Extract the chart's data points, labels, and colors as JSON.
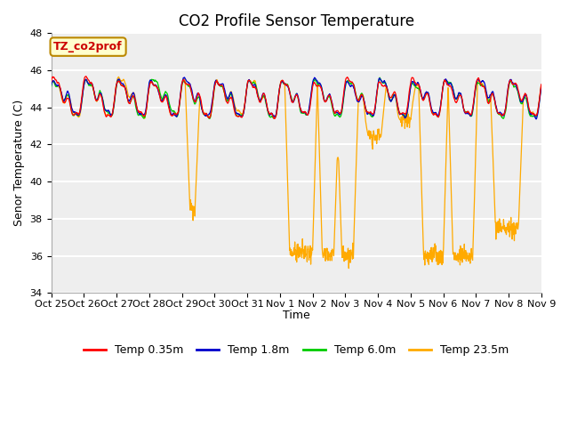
{
  "title": "CO2 Profile Sensor Temperature",
  "ylabel": "Senor Temperature (C)",
  "xlabel": "Time",
  "ylim": [
    34,
    48
  ],
  "yticks": [
    34,
    36,
    38,
    40,
    42,
    44,
    46,
    48
  ],
  "annotation_text": "TZ_co2prof",
  "annotation_color": "#cc0000",
  "annotation_bg": "#ffffcc",
  "annotation_border": "#bb8800",
  "colors": {
    "Temp 0.35m": "#ff0000",
    "Temp 1.8m": "#0000cc",
    "Temp 6.0m": "#00cc00",
    "Temp 23.5m": "#ffaa00"
  },
  "line_width": 0.9,
  "bg_color": "#ffffff",
  "plot_bg": "#eeeeee",
  "grid_color": "#ffffff",
  "tick_label_size": 8,
  "title_size": 12,
  "label_size": 9,
  "tick_labels": [
    "Oct 25",
    "Oct 26",
    "Oct 27",
    "Oct 28",
    "Oct 29",
    "Oct 30",
    "Oct 31",
    "Nov 1",
    "Nov 2",
    "Nov 3",
    "Nov 4",
    "Nov 5",
    "Nov 6",
    "Nov 7",
    "Nov 8",
    "Nov 9"
  ],
  "legend_labels": [
    "Temp 0.35m",
    "Temp 1.8m",
    "Temp 6.0m",
    "Temp 23.5m"
  ]
}
